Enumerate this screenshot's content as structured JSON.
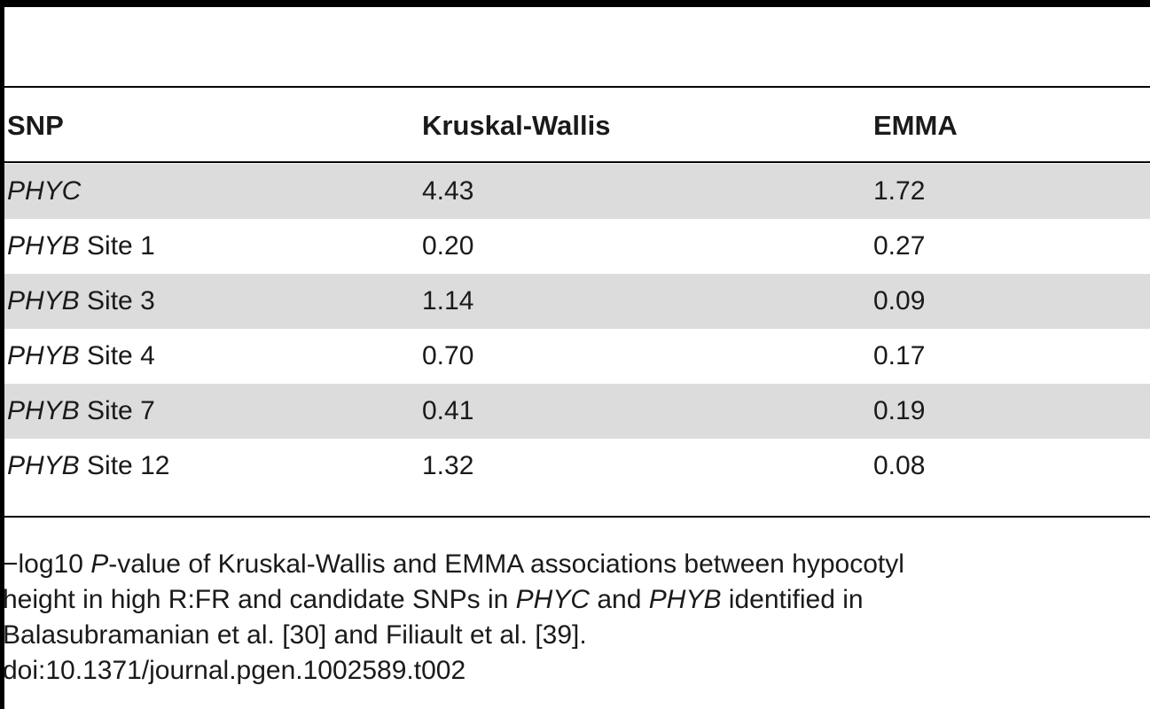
{
  "table": {
    "headers": [
      "SNP",
      "Kruskal-Wallis",
      "EMMA"
    ],
    "rows": [
      {
        "gene": "PHYC",
        "site": "",
        "kruskal_wallis": "4.43",
        "emma": "1.72"
      },
      {
        "gene": "PHYB",
        "site": " Site 1",
        "kruskal_wallis": "0.20",
        "emma": "0.27"
      },
      {
        "gene": "PHYB",
        "site": " Site 3",
        "kruskal_wallis": "1.14",
        "emma": "0.09"
      },
      {
        "gene": "PHYB",
        "site": " Site 4",
        "kruskal_wallis": "0.70",
        "emma": "0.17"
      },
      {
        "gene": "PHYB",
        "site": " Site 7",
        "kruskal_wallis": "0.41",
        "emma": "0.19"
      },
      {
        "gene": "PHYB",
        "site": " Site 12",
        "kruskal_wallis": "1.32",
        "emma": "0.08"
      }
    ]
  },
  "footnote": {
    "l1_a": "−log10 ",
    "l1_b": "P",
    "l1_c": "-value of Kruskal-Wallis and EMMA associations between hypocotyl",
    "l2_a": "height in high R:FR and candidate SNPs in ",
    "l2_b": "PHYC",
    "l2_c": " and ",
    "l2_d": "PHYB",
    "l2_e": " identified in",
    "l3": "Balasubramanian et al. [30] and Filiault et al. [39].",
    "doi": "doi:10.1371/journal.pgen.1002589.t002"
  }
}
